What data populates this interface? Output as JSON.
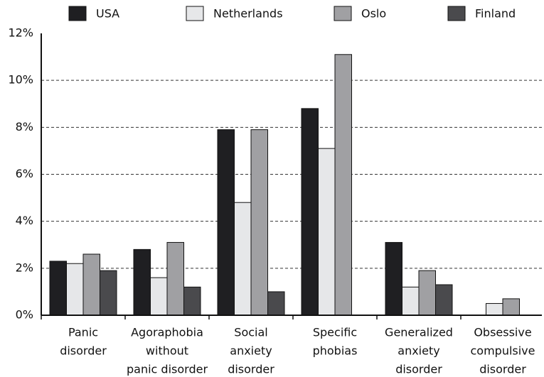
{
  "chart_data": {
    "type": "bar",
    "categories": [
      [
        "Panic",
        "disorder"
      ],
      [
        "Agoraphobia",
        "without",
        "panic disorder"
      ],
      [
        "Social",
        "anxiety",
        "disorder"
      ],
      [
        "Specific",
        "phobias"
      ],
      [
        "Generalized",
        "anxiety",
        "disorder"
      ],
      [
        "Obsessive",
        "compulsive",
        "disorder"
      ]
    ],
    "series": [
      {
        "name": "USA",
        "color": "#1f1f22",
        "values": [
          2.3,
          2.8,
          7.9,
          8.8,
          3.1,
          0
        ]
      },
      {
        "name": "Netherlands",
        "color": "#e6e7e9",
        "values": [
          2.2,
          1.6,
          4.8,
          7.1,
          1.2,
          0.5
        ]
      },
      {
        "name": "Oslo",
        "color": "#a0a0a3",
        "values": [
          2.6,
          3.1,
          7.9,
          11.1,
          1.9,
          0.7
        ]
      },
      {
        "name": "Finland",
        "color": "#4a4a4d",
        "values": [
          1.9,
          1.2,
          1.0,
          0,
          1.3,
          0
        ]
      }
    ],
    "ylim": [
      0,
      12
    ],
    "yticks": [
      {
        "value": 0,
        "label": "0%"
      },
      {
        "value": 2,
        "label": "2%"
      },
      {
        "value": 4,
        "label": "4%"
      },
      {
        "value": 6,
        "label": "6%"
      },
      {
        "value": 8,
        "label": "8%"
      },
      {
        "value": 10,
        "label": "10%"
      },
      {
        "value": 12,
        "label": "12%"
      }
    ],
    "grid": true,
    "legend": "top"
  }
}
